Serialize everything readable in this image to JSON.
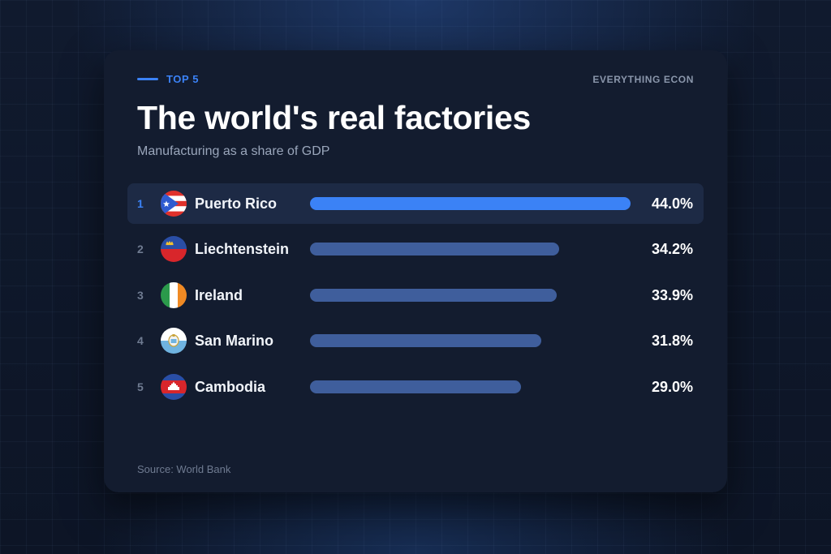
{
  "header": {
    "eyebrow": "TOP 5",
    "brand": "EVERYTHING ECON",
    "title": "The world's real factories",
    "subtitle": "Manufacturing as a share of GDP"
  },
  "footer": {
    "source": "Source: World Bank"
  },
  "colors": {
    "accent": "#3b82f6",
    "bar_default": "#3f5e9c",
    "card": "#131c2f",
    "highlight_row": "#1d2a45"
  },
  "rows": [
    {
      "rank": "1",
      "country": "Puerto Rico",
      "flag": "puerto-rico-flag-icon",
      "value_label": "44.0%"
    },
    {
      "rank": "2",
      "country": "Liechtenstein",
      "flag": "liechtenstein-flag-icon",
      "value_label": "34.2%"
    },
    {
      "rank": "3",
      "country": "Ireland",
      "flag": "ireland-flag-icon",
      "value_label": "33.9%"
    },
    {
      "rank": "4",
      "country": "San Marino",
      "flag": "san-marino-flag-icon",
      "value_label": "31.8%"
    },
    {
      "rank": "5",
      "country": "Cambodia",
      "flag": "cambodia-flag-icon",
      "value_label": "29.0%"
    }
  ],
  "chart_data": {
    "type": "bar",
    "orientation": "horizontal",
    "title": "The world's real factories",
    "subtitle": "Manufacturing as a share of GDP",
    "categories": [
      "Puerto Rico",
      "Liechtenstein",
      "Ireland",
      "San Marino",
      "Cambodia"
    ],
    "values": [
      44.0,
      34.2,
      33.9,
      31.8,
      29.0
    ],
    "value_labels": [
      "44.0%",
      "34.2%",
      "33.9%",
      "31.8%",
      "29.0%"
    ],
    "xlim": [
      0,
      44.0
    ],
    "highlighted_category": "Puerto Rico",
    "grid": false,
    "legend": "none",
    "source": "Source: World Bank"
  }
}
